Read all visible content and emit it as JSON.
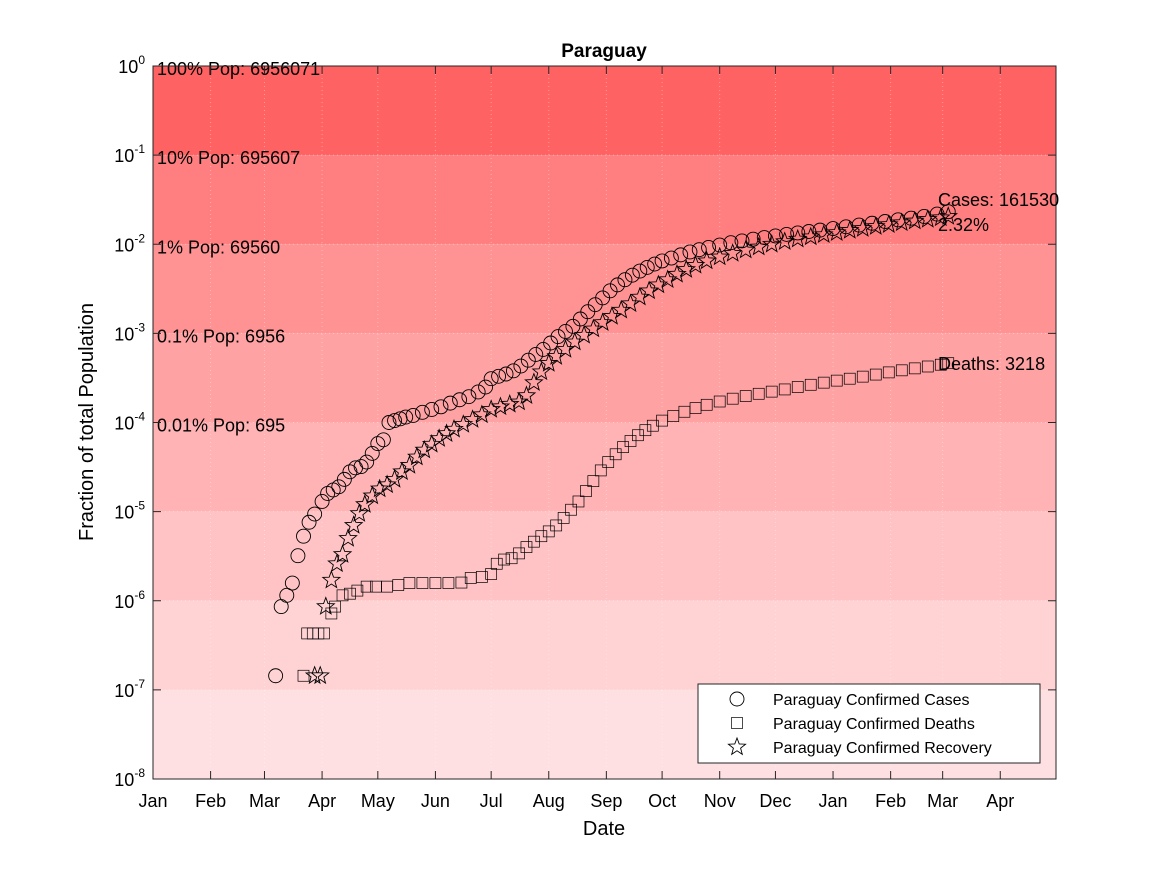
{
  "chart_data": {
    "type": "scatter",
    "title": "Paraguay",
    "xlabel": "Date",
    "ylabel": "Fraction of total Population",
    "yscale": "log",
    "ylim": [
      1e-08,
      1
    ],
    "xlim": [
      "2020-01-01",
      "2021-05-01"
    ],
    "xticks": [
      {
        "date": "2020-01-01",
        "label": "Jan"
      },
      {
        "date": "2020-02-01",
        "label": "Feb"
      },
      {
        "date": "2020-03-01",
        "label": "Mar"
      },
      {
        "date": "2020-04-01",
        "label": "Apr"
      },
      {
        "date": "2020-05-01",
        "label": "May"
      },
      {
        "date": "2020-06-01",
        "label": "Jun"
      },
      {
        "date": "2020-07-01",
        "label": "Jul"
      },
      {
        "date": "2020-08-01",
        "label": "Aug"
      },
      {
        "date": "2020-09-01",
        "label": "Sep"
      },
      {
        "date": "2020-10-01",
        "label": "Oct"
      },
      {
        "date": "2020-11-01",
        "label": "Nov"
      },
      {
        "date": "2020-12-01",
        "label": "Dec"
      },
      {
        "date": "2021-01-01",
        "label": "Jan"
      },
      {
        "date": "2021-02-01",
        "label": "Feb"
      },
      {
        "date": "2021-03-01",
        "label": "Mar"
      },
      {
        "date": "2021-04-01",
        "label": "Apr"
      }
    ],
    "yticks": [
      {
        "value": 1e-08,
        "base": "10",
        "exp": "-8"
      },
      {
        "value": 1e-07,
        "base": "10",
        "exp": "-7"
      },
      {
        "value": 1e-06,
        "base": "10",
        "exp": "-6"
      },
      {
        "value": 1e-05,
        "base": "10",
        "exp": "-5"
      },
      {
        "value": 0.0001,
        "base": "10",
        "exp": "-4"
      },
      {
        "value": 0.001,
        "base": "10",
        "exp": "-3"
      },
      {
        "value": 0.01,
        "base": "10",
        "exp": "-2"
      },
      {
        "value": 0.1,
        "base": "10",
        "exp": "-1"
      },
      {
        "value": 1,
        "base": "10",
        "exp": "0"
      }
    ],
    "bands": [
      {
        "from": 1e-08,
        "to": 1e-07,
        "color": "#ffe0e2"
      },
      {
        "from": 1e-07,
        "to": 1e-06,
        "color": "#ffd2d4"
      },
      {
        "from": 1e-06,
        "to": 1e-05,
        "color": "#ffc3c5"
      },
      {
        "from": 1e-05,
        "to": 0.0001,
        "color": "#ffb3b5"
      },
      {
        "from": 0.0001,
        "to": 0.001,
        "color": "#ffa2a3"
      },
      {
        "from": 0.001,
        "to": 0.01,
        "color": "#ff9293"
      },
      {
        "from": 0.01,
        "to": 0.1,
        "color": "#ff7f80"
      },
      {
        "from": 0.1,
        "to": 1,
        "color": "#ff6263"
      }
    ],
    "band_labels": [
      {
        "value": 1,
        "text": "100% Pop: 6956071"
      },
      {
        "value": 0.1,
        "text": "10% Pop: 695607"
      },
      {
        "value": 0.01,
        "text": "1% Pop: 69560"
      },
      {
        "value": 0.001,
        "text": "0.1% Pop: 6956"
      },
      {
        "value": 0.0001,
        "text": "0.01% Pop: 695"
      }
    ],
    "annotations": {
      "cases": "Cases: 161530",
      "percent": "2.32%",
      "deaths": "Deaths: 3218"
    },
    "legend": {
      "placement": "bottom-right",
      "entries": [
        {
          "marker": "circle",
          "label": "Paraguay Confirmed Cases"
        },
        {
          "marker": "square",
          "label": "Paraguay Confirmed Deaths"
        },
        {
          "marker": "star",
          "label": "Paraguay Confirmed Recovery"
        }
      ]
    },
    "series": [
      {
        "marker": "circle",
        "points": [
          [
            "2020-03-07",
            1.44e-07
          ],
          [
            "2020-03-10",
            8.6e-07
          ],
          [
            "2020-03-13",
            1.15e-06
          ],
          [
            "2020-03-16",
            1.58e-06
          ],
          [
            "2020-03-19",
            3.2e-06
          ],
          [
            "2020-03-22",
            5.3e-06
          ],
          [
            "2020-03-25",
            7.6e-06
          ],
          [
            "2020-03-28",
            9.4e-06
          ],
          [
            "2020-04-01",
            1.3e-05
          ],
          [
            "2020-04-04",
            1.6e-05
          ],
          [
            "2020-04-07",
            1.75e-05
          ],
          [
            "2020-04-10",
            1.9e-05
          ],
          [
            "2020-04-13",
            2.3e-05
          ],
          [
            "2020-04-16",
            2.8e-05
          ],
          [
            "2020-04-19",
            3.1e-05
          ],
          [
            "2020-04-22",
            3.2e-05
          ],
          [
            "2020-04-25",
            3.6e-05
          ],
          [
            "2020-04-28",
            4.5e-05
          ],
          [
            "2020-05-01",
            5.8e-05
          ],
          [
            "2020-05-04",
            6.4e-05
          ],
          [
            "2020-05-07",
            0.0001
          ],
          [
            "2020-05-10",
            0.000105
          ],
          [
            "2020-05-13",
            0.00011
          ],
          [
            "2020-05-16",
            0.000115
          ],
          [
            "2020-05-20",
            0.00012
          ],
          [
            "2020-05-25",
            0.00013
          ],
          [
            "2020-05-30",
            0.00014
          ],
          [
            "2020-06-04",
            0.00015
          ],
          [
            "2020-06-09",
            0.000165
          ],
          [
            "2020-06-14",
            0.00018
          ],
          [
            "2020-06-19",
            0.000195
          ],
          [
            "2020-06-24",
            0.00022
          ],
          [
            "2020-06-28",
            0.00025
          ],
          [
            "2020-07-01",
            0.00031
          ],
          [
            "2020-07-05",
            0.00033
          ],
          [
            "2020-07-09",
            0.00035
          ],
          [
            "2020-07-13",
            0.00038
          ],
          [
            "2020-07-17",
            0.00043
          ],
          [
            "2020-07-21",
            0.0005
          ],
          [
            "2020-07-25",
            0.00058
          ],
          [
            "2020-07-29",
            0.00066
          ],
          [
            "2020-08-02",
            0.00078
          ],
          [
            "2020-08-06",
            0.00092
          ],
          [
            "2020-08-10",
            0.00105
          ],
          [
            "2020-08-14",
            0.0012
          ],
          [
            "2020-08-18",
            0.00145
          ],
          [
            "2020-08-22",
            0.00175
          ],
          [
            "2020-08-26",
            0.0021
          ],
          [
            "2020-08-30",
            0.0025
          ],
          [
            "2020-09-03",
            0.003
          ],
          [
            "2020-09-07",
            0.0035
          ],
          [
            "2020-09-11",
            0.004
          ],
          [
            "2020-09-15",
            0.0045
          ],
          [
            "2020-09-19",
            0.005
          ],
          [
            "2020-09-23",
            0.0055
          ],
          [
            "2020-09-27",
            0.006
          ],
          [
            "2020-10-01",
            0.0065
          ],
          [
            "2020-10-06",
            0.007
          ],
          [
            "2020-10-11",
            0.0076
          ],
          [
            "2020-10-16",
            0.0082
          ],
          [
            "2020-10-21",
            0.0087
          ],
          [
            "2020-10-26",
            0.0092
          ],
          [
            "2020-11-01",
            0.0098
          ],
          [
            "2020-11-07",
            0.0104
          ],
          [
            "2020-11-13",
            0.0109
          ],
          [
            "2020-11-19",
            0.0114
          ],
          [
            "2020-11-25",
            0.0119
          ],
          [
            "2020-12-01",
            0.0124
          ],
          [
            "2020-12-07",
            0.0129
          ],
          [
            "2020-12-13",
            0.0134
          ],
          [
            "2020-12-19",
            0.0139
          ],
          [
            "2020-12-25",
            0.0144
          ],
          [
            "2021-01-01",
            0.015
          ],
          [
            "2021-01-08",
            0.0157
          ],
          [
            "2021-01-15",
            0.0164
          ],
          [
            "2021-01-22",
            0.0172
          ],
          [
            "2021-01-29",
            0.018
          ],
          [
            "2021-02-05",
            0.0188
          ],
          [
            "2021-02-12",
            0.0196
          ],
          [
            "2021-02-19",
            0.0205
          ],
          [
            "2021-02-26",
            0.0218
          ],
          [
            "2021-03-04",
            0.0232
          ]
        ]
      },
      {
        "marker": "square",
        "points": [
          [
            "2020-03-22",
            1.44e-07
          ],
          [
            "2020-03-24",
            4.3e-07
          ],
          [
            "2020-03-27",
            4.3e-07
          ],
          [
            "2020-03-30",
            4.3e-07
          ],
          [
            "2020-04-02",
            4.3e-07
          ],
          [
            "2020-04-06",
            7.2e-07
          ],
          [
            "2020-04-08",
            8.6e-07
          ],
          [
            "2020-04-12",
            1.15e-06
          ],
          [
            "2020-04-16",
            1.2e-06
          ],
          [
            "2020-04-20",
            1.3e-06
          ],
          [
            "2020-04-25",
            1.44e-06
          ],
          [
            "2020-04-30",
            1.44e-06
          ],
          [
            "2020-05-06",
            1.44e-06
          ],
          [
            "2020-05-12",
            1.5e-06
          ],
          [
            "2020-05-18",
            1.58e-06
          ],
          [
            "2020-05-25",
            1.58e-06
          ],
          [
            "2020-06-01",
            1.58e-06
          ],
          [
            "2020-06-08",
            1.58e-06
          ],
          [
            "2020-06-15",
            1.6e-06
          ],
          [
            "2020-06-20",
            1.8e-06
          ],
          [
            "2020-06-26",
            1.85e-06
          ],
          [
            "2020-07-01",
            2e-06
          ],
          [
            "2020-07-04",
            2.6e-06
          ],
          [
            "2020-07-08",
            2.9e-06
          ],
          [
            "2020-07-12",
            3e-06
          ],
          [
            "2020-07-16",
            3.4e-06
          ],
          [
            "2020-07-20",
            4e-06
          ],
          [
            "2020-07-24",
            4.6e-06
          ],
          [
            "2020-07-28",
            5.3e-06
          ],
          [
            "2020-08-01",
            6e-06
          ],
          [
            "2020-08-05",
            7e-06
          ],
          [
            "2020-08-09",
            8.5e-06
          ],
          [
            "2020-08-13",
            1.05e-05
          ],
          [
            "2020-08-17",
            1.3e-05
          ],
          [
            "2020-08-21",
            1.7e-05
          ],
          [
            "2020-08-25",
            2.2e-05
          ],
          [
            "2020-08-29",
            2.9e-05
          ],
          [
            "2020-09-02",
            3.6e-05
          ],
          [
            "2020-09-06",
            4.4e-05
          ],
          [
            "2020-09-10",
            5.3e-05
          ],
          [
            "2020-09-14",
            6.2e-05
          ],
          [
            "2020-09-18",
            7.2e-05
          ],
          [
            "2020-09-22",
            8.2e-05
          ],
          [
            "2020-09-26",
            9.2e-05
          ],
          [
            "2020-10-01",
            0.000105
          ],
          [
            "2020-10-07",
            0.000118
          ],
          [
            "2020-10-13",
            0.000132
          ],
          [
            "2020-10-19",
            0.000145
          ],
          [
            "2020-10-25",
            0.000158
          ],
          [
            "2020-11-01",
            0.000172
          ],
          [
            "2020-11-08",
            0.000185
          ],
          [
            "2020-11-15",
            0.000198
          ],
          [
            "2020-11-22",
            0.00021
          ],
          [
            "2020-11-29",
            0.000222
          ],
          [
            "2020-12-06",
            0.000235
          ],
          [
            "2020-12-13",
            0.00025
          ],
          [
            "2020-12-20",
            0.000265
          ],
          [
            "2020-12-27",
            0.00028
          ],
          [
            "2021-01-03",
            0.000295
          ],
          [
            "2021-01-10",
            0.00031
          ],
          [
            "2021-01-17",
            0.000327
          ],
          [
            "2021-01-24",
            0.000345
          ],
          [
            "2021-01-31",
            0.000365
          ],
          [
            "2021-02-07",
            0.000385
          ],
          [
            "2021-02-14",
            0.000405
          ],
          [
            "2021-02-21",
            0.000425
          ],
          [
            "2021-02-28",
            0.000445
          ],
          [
            "2021-03-04",
            0.000463
          ]
        ]
      },
      {
        "marker": "star",
        "points": [
          [
            "2020-03-28",
            1.44e-07
          ],
          [
            "2020-03-31",
            1.44e-07
          ],
          [
            "2020-04-03",
            8.6e-07
          ],
          [
            "2020-04-06",
            1.7e-06
          ],
          [
            "2020-04-09",
            2.6e-06
          ],
          [
            "2020-04-12",
            3.3e-06
          ],
          [
            "2020-04-15",
            5e-06
          ],
          [
            "2020-04-18",
            7e-06
          ],
          [
            "2020-04-21",
            9.5e-06
          ],
          [
            "2020-04-24",
            1.2e-05
          ],
          [
            "2020-04-28",
            1.5e-05
          ],
          [
            "2020-05-02",
            1.8e-05
          ],
          [
            "2020-05-06",
            2e-05
          ],
          [
            "2020-05-10",
            2.3e-05
          ],
          [
            "2020-05-14",
            2.8e-05
          ],
          [
            "2020-05-18",
            3.3e-05
          ],
          [
            "2020-05-22",
            4.1e-05
          ],
          [
            "2020-05-26",
            4.9e-05
          ],
          [
            "2020-05-30",
            5.7e-05
          ],
          [
            "2020-06-03",
            6.6e-05
          ],
          [
            "2020-06-07",
            7.5e-05
          ],
          [
            "2020-06-11",
            8.4e-05
          ],
          [
            "2020-06-16",
            9.5e-05
          ],
          [
            "2020-06-21",
            0.000108
          ],
          [
            "2020-06-26",
            0.000122
          ],
          [
            "2020-07-01",
            0.00014
          ],
          [
            "2020-07-06",
            0.00015
          ],
          [
            "2020-07-11",
            0.00016
          ],
          [
            "2020-07-16",
            0.00017
          ],
          [
            "2020-07-20",
            0.0002
          ],
          [
            "2020-07-24",
            0.00028
          ],
          [
            "2020-07-28",
            0.00037
          ],
          [
            "2020-08-01",
            0.00046
          ],
          [
            "2020-08-05",
            0.00055
          ],
          [
            "2020-08-10",
            0.00066
          ],
          [
            "2020-08-15",
            0.0008
          ],
          [
            "2020-08-20",
            0.00095
          ],
          [
            "2020-08-25",
            0.00112
          ],
          [
            "2020-08-30",
            0.00132
          ],
          [
            "2020-09-04",
            0.00155
          ],
          [
            "2020-09-09",
            0.00182
          ],
          [
            "2020-09-14",
            0.00215
          ],
          [
            "2020-09-19",
            0.00255
          ],
          [
            "2020-09-24",
            0.003
          ],
          [
            "2020-09-29",
            0.0035
          ],
          [
            "2020-10-04",
            0.004
          ],
          [
            "2020-10-09",
            0.0046
          ],
          [
            "2020-10-14",
            0.0052
          ],
          [
            "2020-10-19",
            0.0058
          ],
          [
            "2020-10-25",
            0.0065
          ],
          [
            "2020-11-01",
            0.0072
          ],
          [
            "2020-11-08",
            0.0079
          ],
          [
            "2020-11-15",
            0.0086
          ],
          [
            "2020-11-22",
            0.0093
          ],
          [
            "2020-11-29",
            0.01
          ],
          [
            "2020-12-06",
            0.0107
          ],
          [
            "2020-12-13",
            0.0114
          ],
          [
            "2020-12-20",
            0.0121
          ],
          [
            "2020-12-27",
            0.0128
          ],
          [
            "2021-01-03",
            0.0135
          ],
          [
            "2021-01-10",
            0.0143
          ],
          [
            "2021-01-17",
            0.015
          ],
          [
            "2021-01-24",
            0.0158
          ],
          [
            "2021-01-31",
            0.0166
          ],
          [
            "2021-02-07",
            0.0174
          ],
          [
            "2021-02-14",
            0.0182
          ],
          [
            "2021-02-21",
            0.019
          ],
          [
            "2021-02-28",
            0.0198
          ],
          [
            "2021-03-04",
            0.0205
          ]
        ]
      }
    ]
  }
}
